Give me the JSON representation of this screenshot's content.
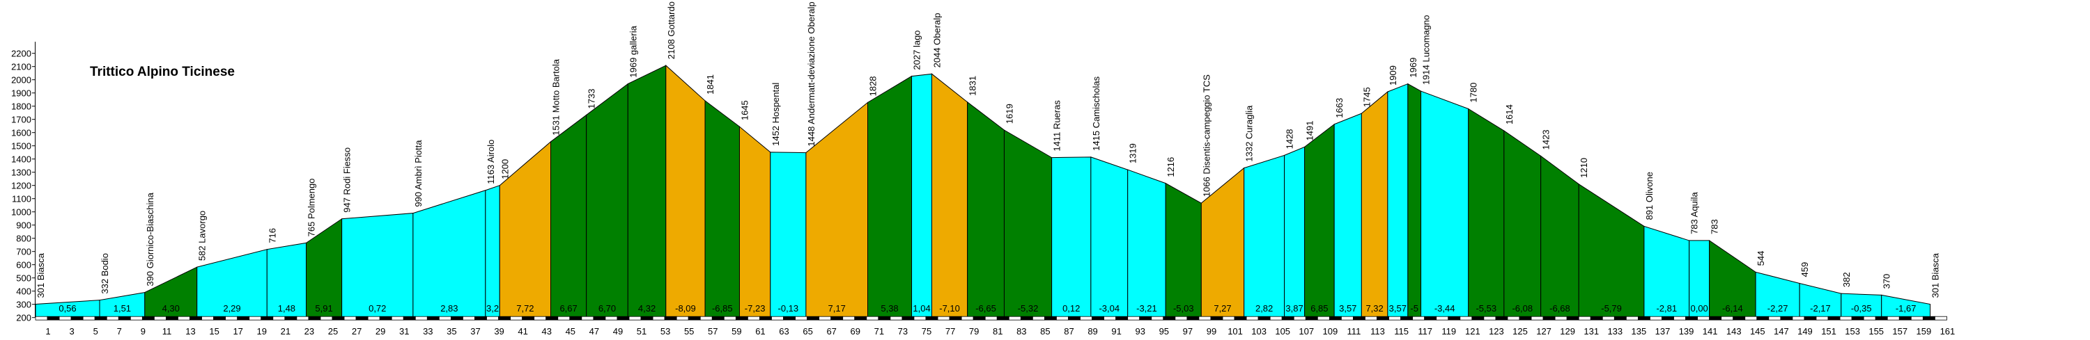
{
  "chart_data": {
    "type": "area",
    "title": "Trittico Alpino Ticinese",
    "xlabel": "",
    "ylabel": "",
    "xlim": [
      0,
      161
    ],
    "ylim": [
      200,
      2200
    ],
    "y_ticks": [
      200,
      300,
      400,
      500,
      600,
      700,
      800,
      900,
      1000,
      1100,
      1200,
      1300,
      1400,
      1500,
      1600,
      1700,
      1800,
      1900,
      2000,
      2100,
      2200
    ],
    "x_ticks": [
      1,
      3,
      5,
      7,
      9,
      11,
      13,
      15,
      17,
      19,
      21,
      23,
      25,
      27,
      29,
      31,
      33,
      35,
      37,
      39,
      41,
      43,
      45,
      47,
      49,
      51,
      53,
      55,
      57,
      59,
      61,
      63,
      65,
      67,
      69,
      71,
      73,
      75,
      77,
      79,
      81,
      83,
      85,
      87,
      89,
      91,
      93,
      95,
      97,
      99,
      101,
      103,
      105,
      107,
      109,
      111,
      113,
      115,
      117,
      119,
      121,
      123,
      125,
      127,
      129,
      131,
      133,
      135,
      137,
      139,
      141,
      143,
      145,
      147,
      149,
      151,
      153,
      155,
      157,
      159,
      161
    ],
    "points": [
      {
        "km": 0,
        "elev": 301,
        "label": "301 Biasca"
      },
      {
        "km": 5.4,
        "elev": 332,
        "label": "332 Bodio"
      },
      {
        "km": 9.2,
        "elev": 390,
        "label": "390 Giornico-Biaschina"
      },
      {
        "km": 13.6,
        "elev": 582,
        "label": "582 Lavorgo"
      },
      {
        "km": 19.5,
        "elev": 716,
        "label": "716"
      },
      {
        "km": 22.8,
        "elev": 765,
        "label": "765 Polmengo"
      },
      {
        "km": 25.8,
        "elev": 947,
        "label": "947 Rodi Fiesso"
      },
      {
        "km": 31.8,
        "elev": 990,
        "label": "990 Ambrì Piotta"
      },
      {
        "km": 37.9,
        "elev": 1163,
        "label": "1163 Airolo"
      },
      {
        "km": 39.1,
        "elev": 1200,
        "label": "1200"
      },
      {
        "km": 43.4,
        "elev": 1531,
        "label": "1531 Motto Bartola"
      },
      {
        "km": 46.4,
        "elev": 1733,
        "label": "1733"
      },
      {
        "km": 49.9,
        "elev": 1969,
        "label": "1969 galleria"
      },
      {
        "km": 53.1,
        "elev": 2108,
        "label": "2108 Gottardo"
      },
      {
        "km": 56.4,
        "elev": 1841,
        "label": "1841"
      },
      {
        "km": 59.3,
        "elev": 1645,
        "label": "1645"
      },
      {
        "km": 61.9,
        "elev": 1452,
        "label": "1452 Hospental"
      },
      {
        "km": 64.9,
        "elev": 1448,
        "label": "1448 Andermatt-deviazione Oberalp"
      },
      {
        "km": 70.1,
        "elev": 1828,
        "label": "1828"
      },
      {
        "km": 73.8,
        "elev": 2027,
        "label": "2027 lago"
      },
      {
        "km": 75.5,
        "elev": 2044,
        "label": "2044 Oberalp"
      },
      {
        "km": 78.5,
        "elev": 1831,
        "label": "1831"
      },
      {
        "km": 81.6,
        "elev": 1619,
        "label": "1619"
      },
      {
        "km": 85.6,
        "elev": 1411,
        "label": "1411 Rueras"
      },
      {
        "km": 88.9,
        "elev": 1415,
        "label": "1415 Camischolas"
      },
      {
        "km": 92.0,
        "elev": 1319,
        "label": "1319"
      },
      {
        "km": 95.2,
        "elev": 1216,
        "label": "1216"
      },
      {
        "km": 98.2,
        "elev": 1066,
        "label": "1066 Disentis-campeggio TCS"
      },
      {
        "km": 101.8,
        "elev": 1332,
        "label": "1332 Curaglia"
      },
      {
        "km": 105.2,
        "elev": 1428,
        "label": "1428"
      },
      {
        "km": 106.9,
        "elev": 1491,
        "label": "1491"
      },
      {
        "km": 109.4,
        "elev": 1663,
        "label": "1663"
      },
      {
        "km": 111.7,
        "elev": 1745,
        "label": "1745"
      },
      {
        "km": 113.9,
        "elev": 1909,
        "label": "1909"
      },
      {
        "km": 115.6,
        "elev": 1969,
        "label": "1969"
      },
      {
        "km": 116.7,
        "elev": 1914,
        "label": "1914 Lucomagno"
      },
      {
        "km": 120.7,
        "elev": 1780,
        "label": "1780"
      },
      {
        "km": 123.7,
        "elev": 1614,
        "label": "1614"
      },
      {
        "km": 126.8,
        "elev": 1423,
        "label": "1423"
      },
      {
        "km": 130.0,
        "elev": 1210,
        "label": "1210"
      },
      {
        "km": 135.5,
        "elev": 891,
        "label": "891 Olivone"
      },
      {
        "km": 139.3,
        "elev": 783,
        "label": "783 Aquila"
      },
      {
        "km": 141.0,
        "elev": 783,
        "label": "783"
      },
      {
        "km": 144.9,
        "elev": 544,
        "label": "544"
      },
      {
        "km": 148.6,
        "elev": 459,
        "label": "459"
      },
      {
        "km": 152.1,
        "elev": 382,
        "label": "382"
      },
      {
        "km": 155.5,
        "elev": 370,
        "label": "370"
      },
      {
        "km": 159.6,
        "elev": 301,
        "label": "301 Biasca"
      }
    ],
    "segments": [
      {
        "grade": "0,56",
        "color": "cyan"
      },
      {
        "grade": "1,51",
        "color": "cyan"
      },
      {
        "grade": "4,30",
        "color": "green"
      },
      {
        "grade": "2,29",
        "color": "cyan"
      },
      {
        "grade": "1,48",
        "color": "cyan"
      },
      {
        "grade": "5,91",
        "color": "green"
      },
      {
        "grade": "0,72",
        "color": "cyan"
      },
      {
        "grade": "2,83",
        "color": "cyan"
      },
      {
        "grade": "3,2",
        "color": "cyan"
      },
      {
        "grade": "7,72",
        "color": "orange"
      },
      {
        "grade": "6,67",
        "color": "green"
      },
      {
        "grade": "6,70",
        "color": "green"
      },
      {
        "grade": "4,32",
        "color": "green"
      },
      {
        "grade": "-8,09",
        "color": "orange"
      },
      {
        "grade": "-6,85",
        "color": "green"
      },
      {
        "grade": "-7,23",
        "color": "orange"
      },
      {
        "grade": "-0,13",
        "color": "cyan"
      },
      {
        "grade": "7,17",
        "color": "orange"
      },
      {
        "grade": "5,38",
        "color": "green"
      },
      {
        "grade": "1,04",
        "color": "cyan"
      },
      {
        "grade": "-7,10",
        "color": "orange"
      },
      {
        "grade": "-6,65",
        "color": "green"
      },
      {
        "grade": "-5,32",
        "color": "green"
      },
      {
        "grade": "0,12",
        "color": "cyan"
      },
      {
        "grade": "-3,04",
        "color": "cyan"
      },
      {
        "grade": "-3,21",
        "color": "cyan"
      },
      {
        "grade": "-5,03",
        "color": "green"
      },
      {
        "grade": "7,27",
        "color": "orange"
      },
      {
        "grade": "2,82",
        "color": "cyan"
      },
      {
        "grade": "3,87",
        "color": "cyan"
      },
      {
        "grade": "6,85",
        "color": "green"
      },
      {
        "grade": "3,57",
        "color": "cyan"
      },
      {
        "grade": "7,32",
        "color": "orange"
      },
      {
        "grade": "3,57",
        "color": "cyan"
      },
      {
        "grade": "-5",
        "color": "green"
      },
      {
        "grade": "-3,44",
        "color": "cyan"
      },
      {
        "grade": "-5,53",
        "color": "green"
      },
      {
        "grade": "-6,08",
        "color": "green"
      },
      {
        "grade": "-6,68",
        "color": "green"
      },
      {
        "grade": "-5,79",
        "color": "green"
      },
      {
        "grade": "-2,81",
        "color": "cyan"
      },
      {
        "grade": "0,00",
        "color": "cyan"
      },
      {
        "grade": "-6,14",
        "color": "green"
      },
      {
        "grade": "-2,27",
        "color": "cyan"
      },
      {
        "grade": "-2,17",
        "color": "cyan"
      },
      {
        "grade": "-0,35",
        "color": "cyan"
      },
      {
        "grade": "-1,67",
        "color": "cyan"
      }
    ]
  },
  "colors": {
    "cyan": "#00FFFF",
    "green": "#008000",
    "orange": "#EEAA00"
  }
}
